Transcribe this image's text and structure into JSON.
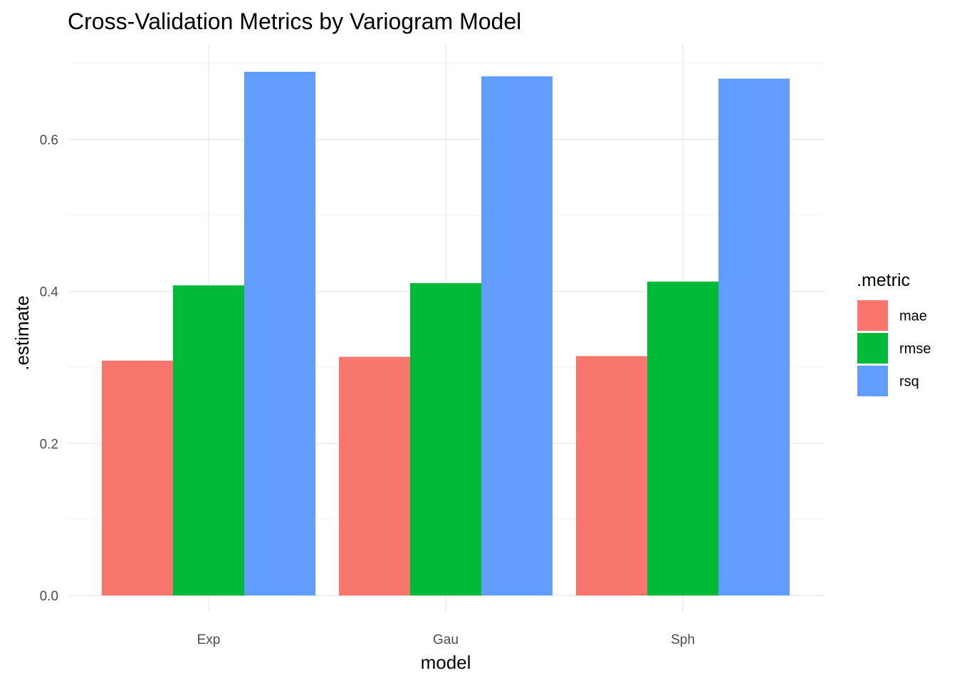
{
  "chart_data": {
    "type": "bar",
    "title": "Cross-Validation Metrics by Variogram Model",
    "xlabel": "model",
    "ylabel": ".estimate",
    "categories": [
      "Exp",
      "Gau",
      "Sph"
    ],
    "series": [
      {
        "name": "mae",
        "color": "#F8766D",
        "values": [
          0.309,
          0.314,
          0.315
        ]
      },
      {
        "name": "rmse",
        "color": "#00BA38",
        "values": [
          0.408,
          0.411,
          0.413
        ]
      },
      {
        "name": "rsq",
        "color": "#619CFF",
        "values": [
          0.689,
          0.683,
          0.68
        ]
      }
    ],
    "ylim": [
      0,
      0.7
    ],
    "yticks": [
      0.0,
      0.2,
      0.4,
      0.6
    ],
    "ytick_labels": [
      "0.0",
      "0.2",
      "0.4",
      "0.6"
    ],
    "legend": {
      "title": ".metric",
      "position": "right"
    },
    "grid": true
  }
}
